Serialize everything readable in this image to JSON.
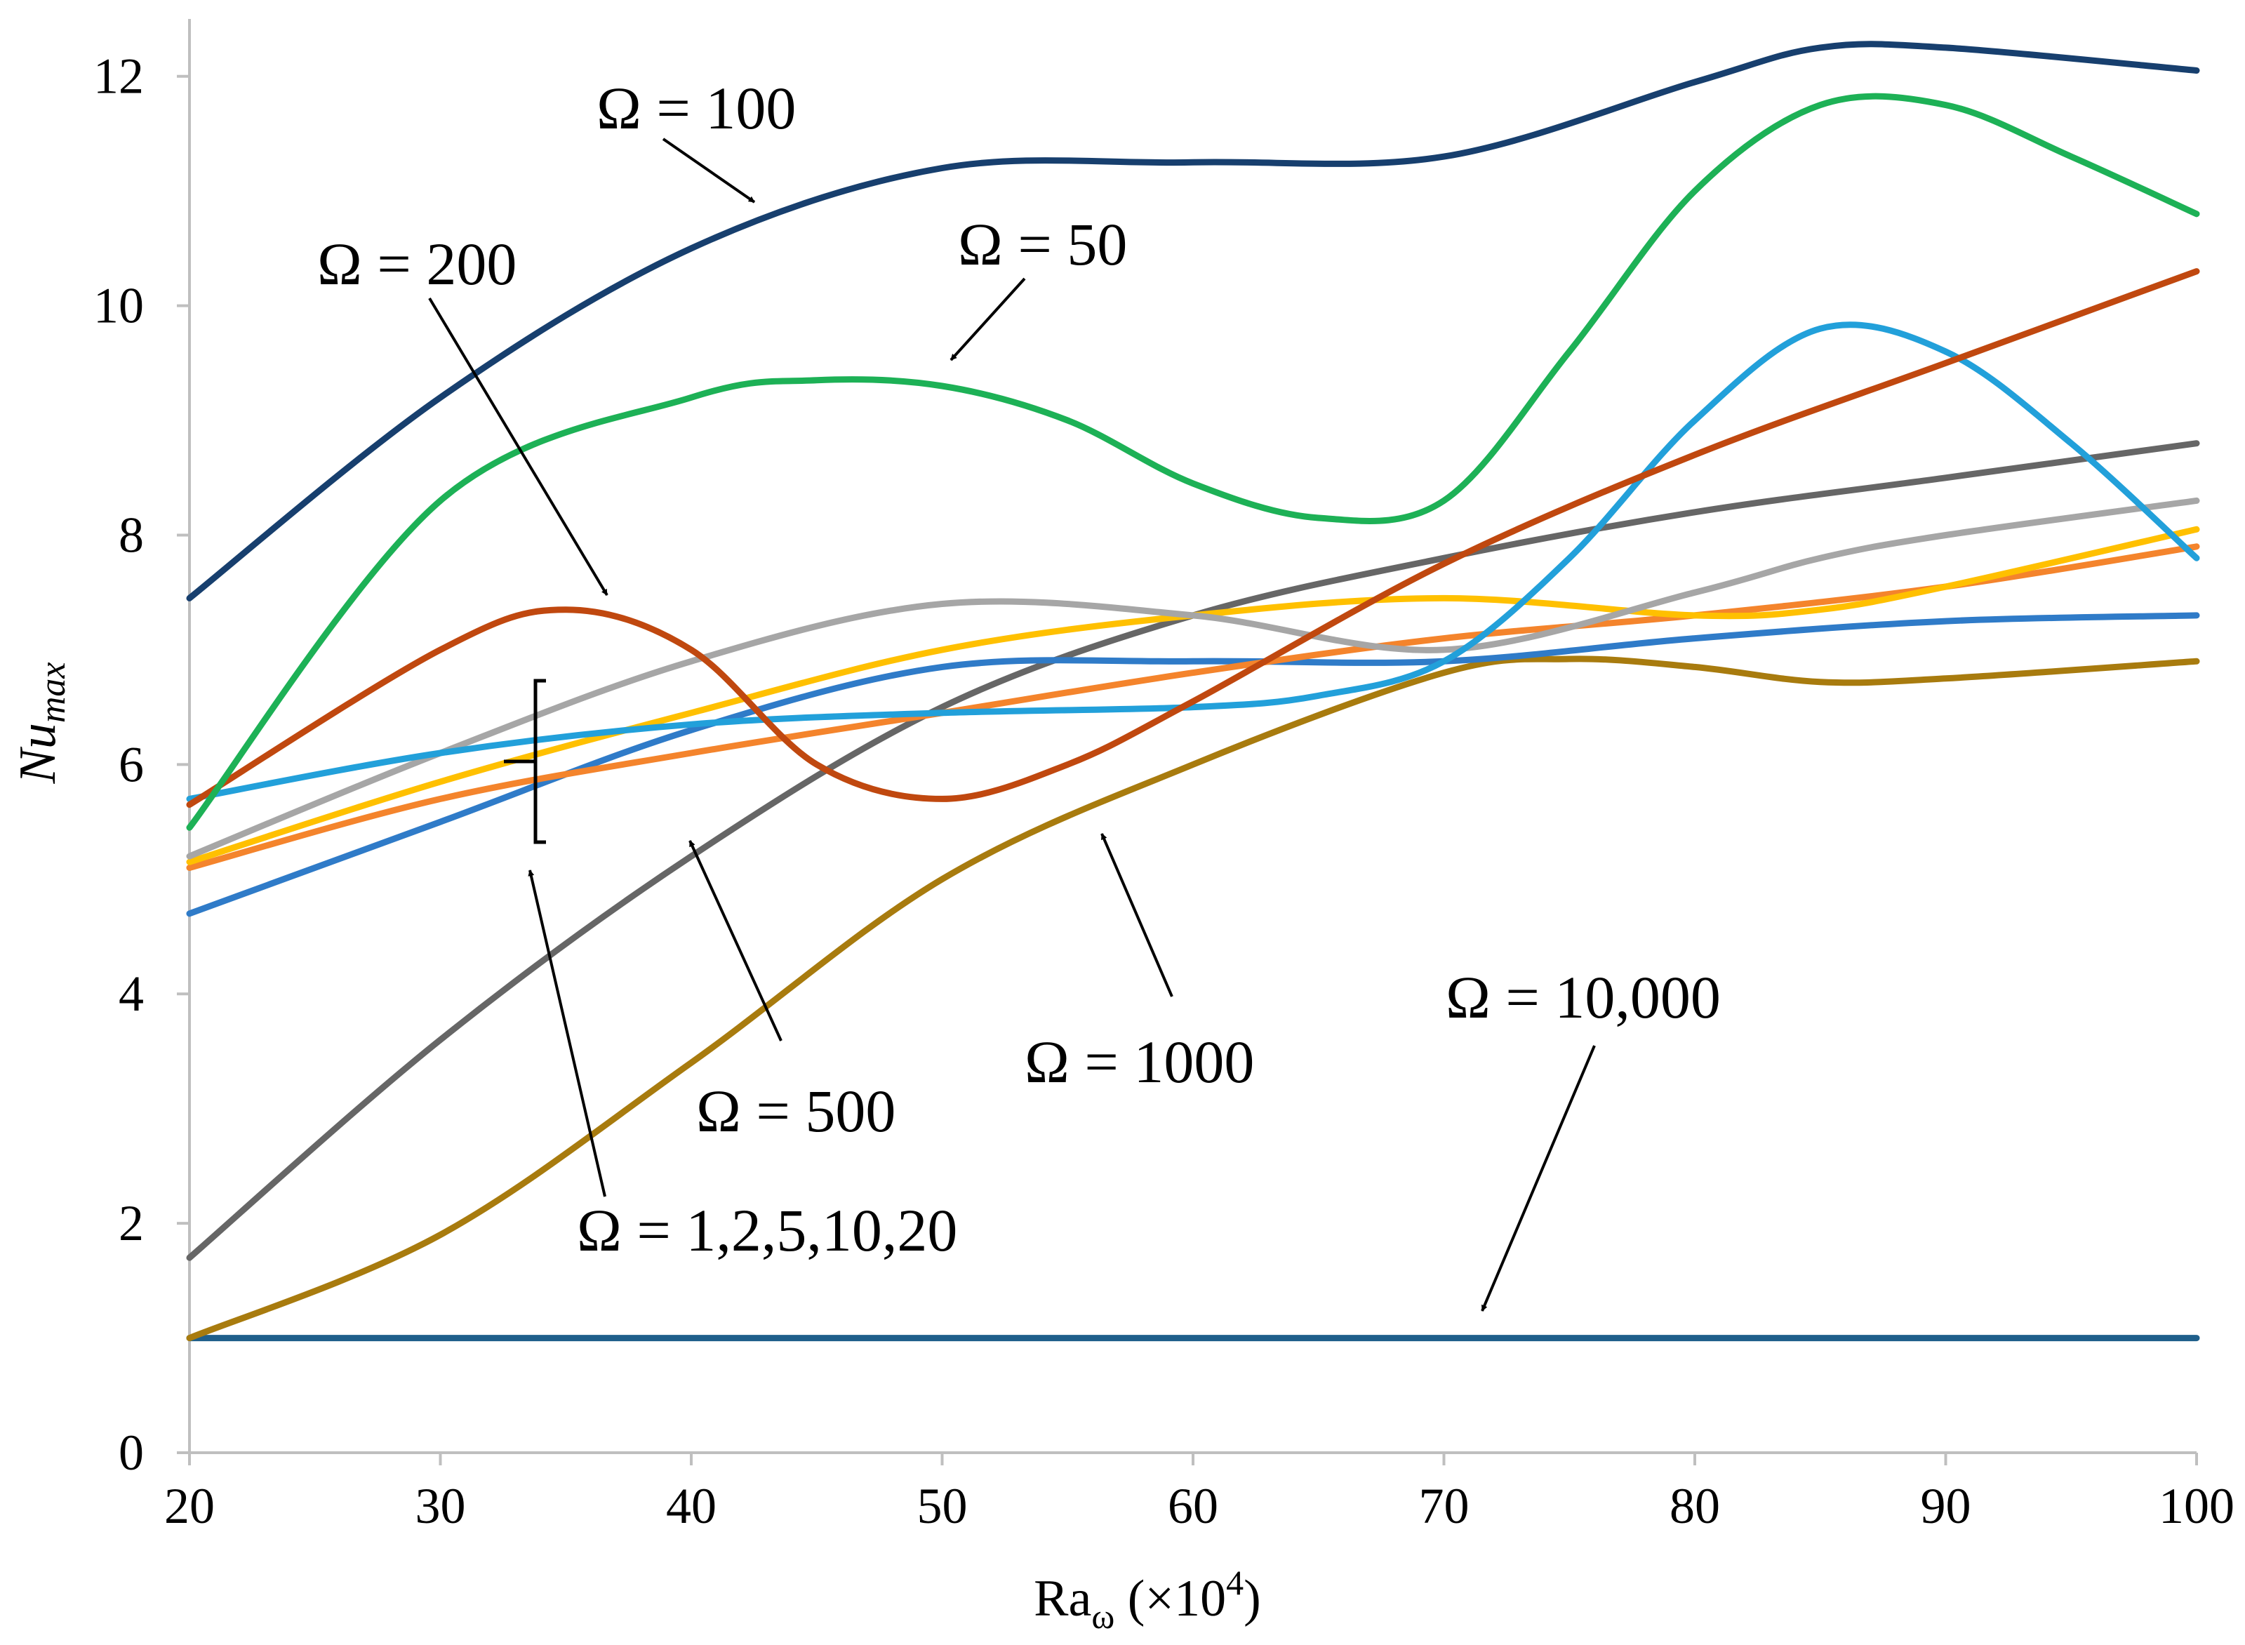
{
  "chart_data": {
    "type": "line",
    "title": "",
    "xlabel": {
      "main": "Ra",
      "subscript": "ω",
      "suffix": " (×10",
      "superscript": "4",
      "close": ")"
    },
    "ylabel": {
      "main": "Nu",
      "subscript": "max"
    },
    "xlim": [
      20,
      100
    ],
    "ylim": [
      0,
      12.5
    ],
    "x_ticks": [
      20,
      30,
      40,
      50,
      60,
      70,
      80,
      90,
      100
    ],
    "x_tick_labels": [
      "20",
      "30",
      "40",
      "50",
      "60",
      "70",
      "80",
      "90",
      "100"
    ],
    "y_ticks": [
      0,
      2,
      4,
      6,
      8,
      10,
      12
    ],
    "y_tick_labels": [
      "0",
      "2",
      "4",
      "6",
      "8",
      "10",
      "12"
    ],
    "grid": false,
    "series": [
      {
        "name": "Ω = 10,000",
        "color": "#1F5F8B",
        "x": [
          20,
          40,
          60,
          80,
          100
        ],
        "y": [
          1.0,
          1.0,
          1.0,
          1.0,
          1.0
        ]
      },
      {
        "name": "Ω = 1000",
        "color": "#A87B0E",
        "x": [
          20,
          30,
          40,
          50,
          60,
          70,
          75,
          80,
          85,
          90,
          100
        ],
        "y": [
          1.0,
          1.9,
          3.4,
          5.0,
          6.0,
          6.8,
          6.92,
          6.85,
          6.72,
          6.75,
          6.9
        ]
      },
      {
        "name": "Ω = 500",
        "color": "#666666",
        "x": [
          20,
          30,
          40,
          50,
          60,
          70,
          80,
          90,
          100
        ],
        "y": [
          1.7,
          3.6,
          5.2,
          6.5,
          7.3,
          7.8,
          8.2,
          8.5,
          8.8
        ]
      },
      {
        "name": "Ω = 1",
        "color": "#2F7BC8",
        "x": [
          20,
          30,
          40,
          50,
          60,
          70,
          80,
          90,
          100
        ],
        "y": [
          4.7,
          5.5,
          6.3,
          6.85,
          6.9,
          6.9,
          7.1,
          7.25,
          7.3
        ]
      },
      {
        "name": "Ω = 2",
        "color": "#F4842C",
        "x": [
          20,
          30,
          40,
          50,
          60,
          70,
          80,
          90,
          100
        ],
        "y": [
          5.1,
          5.7,
          6.1,
          6.45,
          6.8,
          7.1,
          7.3,
          7.55,
          7.9
        ]
      },
      {
        "name": "Ω = 5",
        "color": "#FFC000",
        "x": [
          20,
          30,
          40,
          50,
          60,
          70,
          80,
          85,
          90,
          100
        ],
        "y": [
          5.15,
          5.85,
          6.45,
          7.0,
          7.3,
          7.45,
          7.3,
          7.35,
          7.55,
          8.05
        ]
      },
      {
        "name": "Ω = 10",
        "color": "#A6A6A6",
        "x": [
          20,
          30,
          40,
          50,
          60,
          70,
          80,
          85,
          90,
          100
        ],
        "y": [
          5.2,
          6.1,
          6.9,
          7.4,
          7.3,
          7.0,
          7.5,
          7.8,
          8.0,
          8.3
        ]
      },
      {
        "name": "Ω = 20",
        "color": "#22A0DA",
        "x": [
          20,
          30,
          40,
          50,
          60,
          65,
          70,
          75,
          80,
          85,
          90,
          95,
          100
        ],
        "y": [
          5.7,
          6.1,
          6.35,
          6.45,
          6.5,
          6.6,
          6.9,
          7.8,
          9.0,
          9.8,
          9.6,
          8.8,
          7.8
        ]
      },
      {
        "name": "Ω = 200",
        "color": "#C0480F",
        "x": [
          20,
          30,
          35,
          40,
          45,
          50,
          55,
          60,
          70,
          80,
          90,
          100
        ],
        "y": [
          5.65,
          7.0,
          7.35,
          7.0,
          6.0,
          5.7,
          6.0,
          6.55,
          7.75,
          8.7,
          9.5,
          10.3
        ]
      },
      {
        "name": "Ω = 50",
        "color": "#1DB156",
        "x": [
          20,
          30,
          40,
          45,
          50,
          55,
          60,
          65,
          70,
          75,
          80,
          85,
          90,
          95,
          100
        ],
        "y": [
          5.45,
          8.3,
          9.2,
          9.35,
          9.3,
          9.0,
          8.45,
          8.15,
          8.3,
          9.6,
          11.0,
          11.75,
          11.75,
          11.3,
          10.8
        ]
      },
      {
        "name": "Ω = 100",
        "color": "#173F6E",
        "x": [
          20,
          30,
          40,
          50,
          60,
          70,
          80,
          85,
          90,
          100
        ],
        "y": [
          7.45,
          9.2,
          10.5,
          11.2,
          11.25,
          11.3,
          11.95,
          12.25,
          12.25,
          12.05
        ]
      }
    ],
    "annotations": [
      {
        "text": "Ω = 100"
      },
      {
        "text": "Ω = 50"
      },
      {
        "text": "Ω = 200"
      },
      {
        "text": "Ω = 500"
      },
      {
        "text": "Ω = 1000"
      },
      {
        "text": "Ω = 10,000"
      },
      {
        "text": "Ω = 1,2,5,10,20"
      }
    ]
  }
}
